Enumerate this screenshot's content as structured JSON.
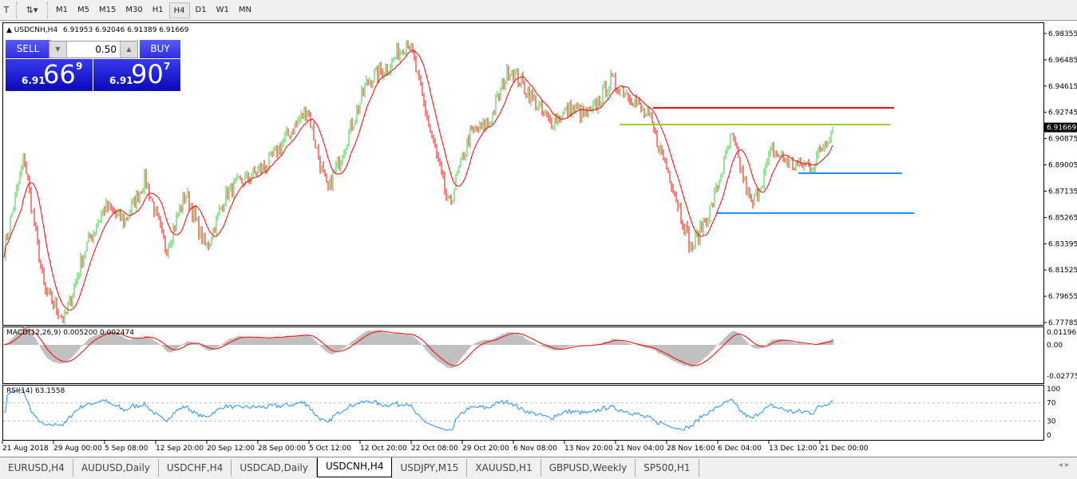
{
  "toolbar": {
    "timeframes": [
      "M1",
      "M5",
      "M15",
      "M30",
      "H1",
      "H4",
      "D1",
      "W1",
      "MN"
    ],
    "active": "H4"
  },
  "chart_header": {
    "symbol": "USDCNH,H4",
    "ohlc": "6.91953 6.92046 6.91389 6.91669"
  },
  "trade_panel": {
    "sell_label": "SELL",
    "buy_label": "BUY",
    "lot": "0.50",
    "sell_prefix": "6.91",
    "sell_big": "66",
    "sell_sup": "9",
    "buy_prefix": "6.91",
    "buy_big": "90",
    "buy_sup": "7"
  },
  "price_axis": {
    "labels": [
      "6.98355",
      "6.96485",
      "6.94615",
      "6.92745",
      "6.90875",
      "6.89005",
      "6.87135",
      "6.85265",
      "6.83395",
      "6.81525",
      "6.79655",
      "6.77785"
    ],
    "current": "6.91669",
    "current_value": 6.91669
  },
  "macd": {
    "label": "MACD(12,26,9) 0.005200 0.002474",
    "axis": [
      "0.011968",
      "0.00",
      "-0.027758"
    ]
  },
  "rsi": {
    "label": "RSI(14) 63.1558",
    "axis": [
      "100",
      "70",
      "30",
      "0"
    ]
  },
  "time_axis": [
    "21 Aug 2018",
    "29 Aug 00:00",
    "5 Sep 08:00",
    "12 Sep 20:00",
    "20 Sep 12:00",
    "28 Sep 00:00",
    "5 Oct 12:00",
    "12 Oct 20:00",
    "22 Oct 08:00",
    "29 Oct 20:00",
    "6 Nov 08:00",
    "13 Nov 20:00",
    "21 Nov 04:00",
    "28 Nov 16:00",
    "6 Dec 04:00",
    "13 Dec 12:00",
    "21 Dec 00:00"
  ],
  "chart_data": {
    "type": "candlestick",
    "symbol": "USDCNH",
    "timeframe": "H4",
    "ylim": [
      6.77785,
      6.98355
    ],
    "close_path_approx": [
      6.83,
      6.895,
      6.8,
      6.78,
      6.83,
      6.86,
      6.85,
      6.88,
      6.83,
      6.87,
      6.83,
      6.87,
      6.88,
      6.89,
      6.91,
      6.93,
      6.87,
      6.91,
      6.95,
      6.96,
      6.98,
      6.92,
      6.86,
      6.91,
      6.92,
      6.96,
      6.94,
      6.92,
      6.93,
      6.925,
      6.95,
      6.94,
      6.92,
      6.88,
      6.83,
      6.86,
      6.91,
      6.86,
      6.9,
      6.89,
      6.89,
      6.91669
    ],
    "colors": {
      "bull": "#32cd32",
      "bear": "#ff0000",
      "ma": "#ff0000"
    },
    "levels": [
      {
        "price": 6.9306,
        "color": "#ff0000"
      },
      {
        "price": 6.9188,
        "color": "#9acd32"
      },
      {
        "price": 6.8841,
        "color": "#1e90ff"
      },
      {
        "price": 6.8557,
        "color": "#1e90ff"
      }
    ]
  },
  "tabs": [
    "EURUSD,H4",
    "AUDUSD,Daily",
    "USDCHF,H4",
    "USDCAD,Daily",
    "USDCNH,H4",
    "USDJPY,M15",
    "XAUUSD,H1",
    "GBPUSD,Weekly",
    "SP500,H1"
  ],
  "active_tab": "USDCNH,H4"
}
